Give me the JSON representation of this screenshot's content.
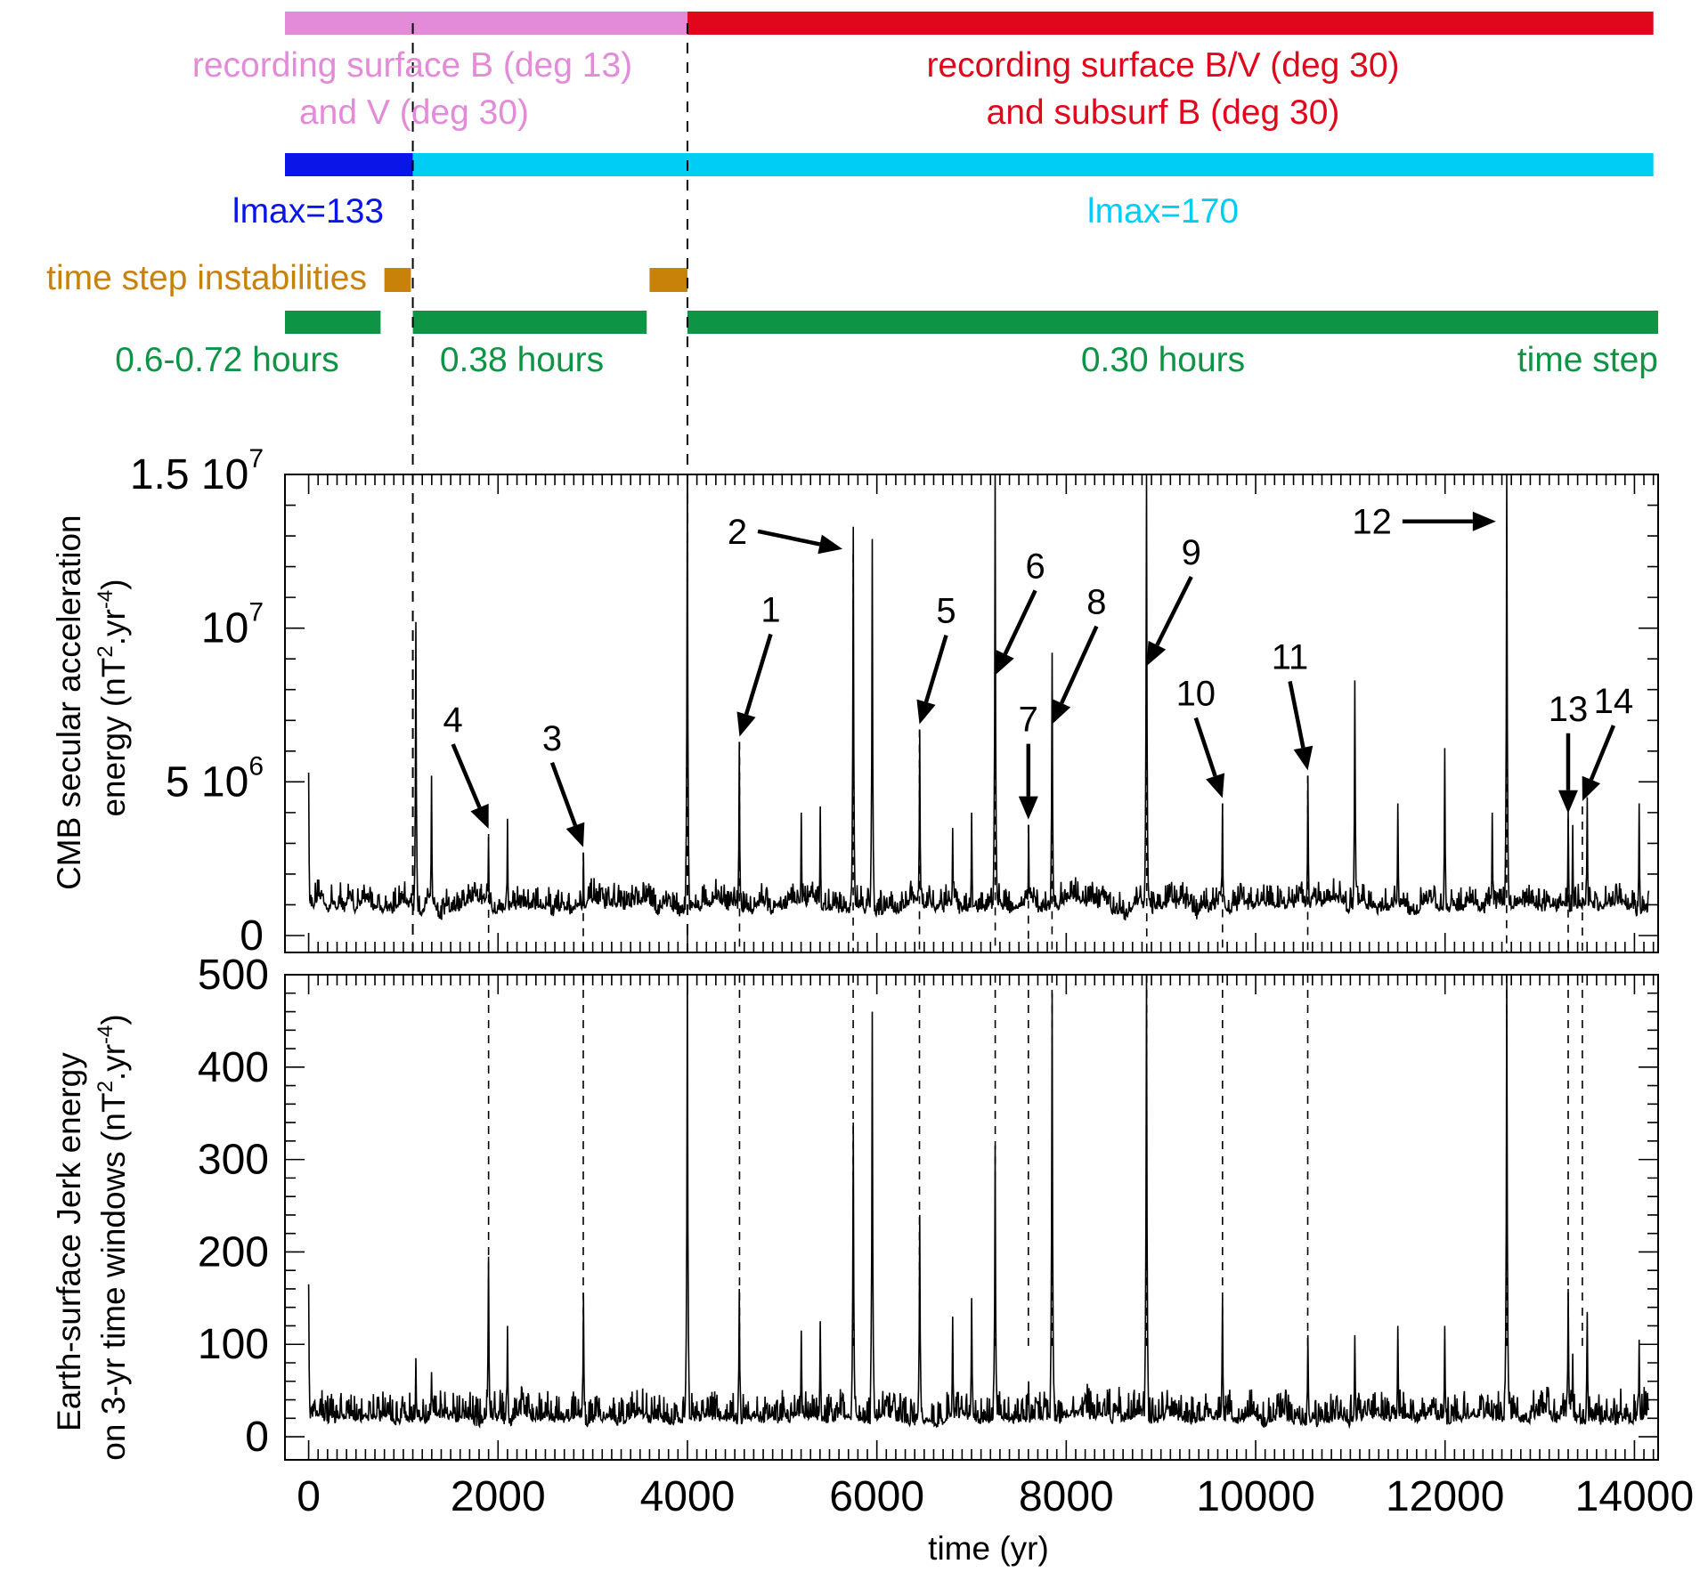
{
  "colors": {
    "pink": "#e38ad8",
    "red": "#e0071c",
    "blue": "#0a15e8",
    "cyan": "#00cdf5",
    "orange": "#c8820a",
    "green": "#0e9445",
    "black": "#000000"
  },
  "timeline": {
    "bars": [
      {
        "name": "recording-bar-early",
        "color": "pink",
        "start": -250,
        "end": 4000
      },
      {
        "name": "recording-bar-late",
        "color": "red",
        "start": 4000,
        "end": 14200
      },
      {
        "name": "lmax-bar-133",
        "color": "blue",
        "start": -250,
        "end": 1100
      },
      {
        "name": "lmax-bar-170",
        "color": "cyan",
        "start": 1100,
        "end": 14200
      },
      {
        "name": "instability-bar-1",
        "color": "orange",
        "start": 800,
        "end": 1080
      },
      {
        "name": "instability-bar-2",
        "color": "orange",
        "start": 3600,
        "end": 4000
      },
      {
        "name": "timestep-bar-1",
        "color": "green",
        "start": -250,
        "end": 760
      },
      {
        "name": "timestep-bar-2",
        "color": "green",
        "start": 1100,
        "end": 3570
      },
      {
        "name": "timestep-bar-3",
        "color": "green",
        "start": 4000,
        "end": 14250
      }
    ],
    "labels": {
      "recording_early_line1": "recording surface B (deg 13)",
      "recording_early_line2": "and V (deg 30)",
      "recording_late_line1": "recording surface B/V (deg 30)",
      "recording_late_line2": "and subsurf B (deg 30)",
      "lmax_133": "lmax=133",
      "lmax_170": "lmax=170",
      "instabilities": "time step instabilities",
      "dt_1": "0.6-0.72 hours",
      "dt_2": "0.38 hours",
      "dt_3": "0.30 hours",
      "dt_title": "time step"
    },
    "transitions": [
      1100,
      4000
    ]
  },
  "chart_data": [
    {
      "type": "line",
      "ylabel_line1": "CMB secular acceleration",
      "ylabel_line2": "energy (nT",
      "ylabel_sup1": "2",
      "ylabel_mid": ".yr",
      "ylabel_sup2": "-4",
      "ylabel_end": ")",
      "xlim": [
        -250,
        14250
      ],
      "ylim": [
        -550000,
        15000000
      ],
      "yticks": [
        {
          "value": 0,
          "mant": "0",
          "exp": ""
        },
        {
          "value": 5000000,
          "mant": "5 10",
          "exp": "6"
        },
        {
          "value": 10000000,
          "mant": "10",
          "exp": "7"
        },
        {
          "value": 15000000,
          "mant": "1.5 10",
          "exp": "7"
        }
      ],
      "baseline": 1000000,
      "noise": 320000,
      "spikes": [
        [
          0,
          5300000
        ],
        [
          1130,
          10200000
        ],
        [
          1300,
          5200000
        ],
        [
          1900,
          3200000
        ],
        [
          2100,
          3800000
        ],
        [
          2900,
          2700000
        ],
        [
          4000,
          15000000
        ],
        [
          4550,
          6300000
        ],
        [
          5200,
          4000000
        ],
        [
          5400,
          4200000
        ],
        [
          5750,
          13300000
        ],
        [
          5950,
          12900000
        ],
        [
          6450,
          6700000
        ],
        [
          6800,
          3500000
        ],
        [
          7000,
          4000000
        ],
        [
          7250,
          15000000
        ],
        [
          7600,
          3600000
        ],
        [
          7850,
          9200000
        ],
        [
          8850,
          15000000
        ],
        [
          9650,
          4300000
        ],
        [
          10550,
          5200000
        ],
        [
          11050,
          8300000
        ],
        [
          11500,
          4300000
        ],
        [
          12000,
          6100000
        ],
        [
          12500,
          4000000
        ],
        [
          12650,
          15000000
        ],
        [
          13300,
          4100000
        ],
        [
          13350,
          3600000
        ],
        [
          13500,
          4500000
        ],
        [
          14050,
          4300000
        ]
      ],
      "events": [
        {
          "id": "1",
          "t": 4550,
          "peak": 6300000
        },
        {
          "id": "2",
          "t": 5750,
          "peak": 12400000
        },
        {
          "id": "3",
          "t": 2900,
          "peak": 2700000
        },
        {
          "id": "4",
          "t": 1900,
          "peak": 3300000
        },
        {
          "id": "5",
          "t": 6450,
          "peak": 6700000
        },
        {
          "id": "6",
          "t": 7250,
          "peak": 8300000
        },
        {
          "id": "7",
          "t": 7600,
          "peak": 3600000
        },
        {
          "id": "8",
          "t": 7850,
          "peak": 6700000
        },
        {
          "id": "9",
          "t": 8850,
          "peak": 8600000
        },
        {
          "id": "10",
          "t": 9650,
          "peak": 4300000
        },
        {
          "id": "11",
          "t": 10550,
          "peak": 5200000
        },
        {
          "id": "12",
          "t": 12650,
          "peak": 13300000
        },
        {
          "id": "13",
          "t": 13300,
          "peak": 3800000
        },
        {
          "id": "14",
          "t": 13450,
          "peak": 4200000
        }
      ]
    },
    {
      "type": "line",
      "ylabel_line1": "Earth-surface Jerk energy",
      "ylabel_line2": "on 3-yr time windows (nT",
      "ylabel_sup1": "2",
      "ylabel_mid": ".yr",
      "ylabel_sup2": "-4",
      "ylabel_end": ")",
      "xlabel": "time (yr)",
      "xlim": [
        -250,
        14250
      ],
      "ylim": [
        -25,
        500
      ],
      "xticks": [
        0,
        2000,
        4000,
        6000,
        8000,
        10000,
        12000,
        14000
      ],
      "yticks": [
        0,
        100,
        200,
        300,
        400,
        500
      ],
      "baseline": 22,
      "noise": 14,
      "spikes": [
        [
          0,
          165
        ],
        [
          1130,
          85
        ],
        [
          1300,
          70
        ],
        [
          1900,
          195
        ],
        [
          2100,
          120
        ],
        [
          2900,
          155
        ],
        [
          4000,
          500
        ],
        [
          4550,
          160
        ],
        [
          5200,
          115
        ],
        [
          5400,
          125
        ],
        [
          5750,
          340
        ],
        [
          5950,
          460
        ],
        [
          6450,
          240
        ],
        [
          6800,
          130
        ],
        [
          7000,
          150
        ],
        [
          7250,
          315
        ],
        [
          7600,
          60
        ],
        [
          7850,
          480
        ],
        [
          8850,
          500
        ],
        [
          9650,
          150
        ],
        [
          10550,
          110
        ],
        [
          11050,
          110
        ],
        [
          11500,
          120
        ],
        [
          12000,
          120
        ],
        [
          12650,
          500
        ],
        [
          13300,
          160
        ],
        [
          13350,
          90
        ],
        [
          13500,
          135
        ],
        [
          14050,
          105
        ]
      ]
    }
  ]
}
